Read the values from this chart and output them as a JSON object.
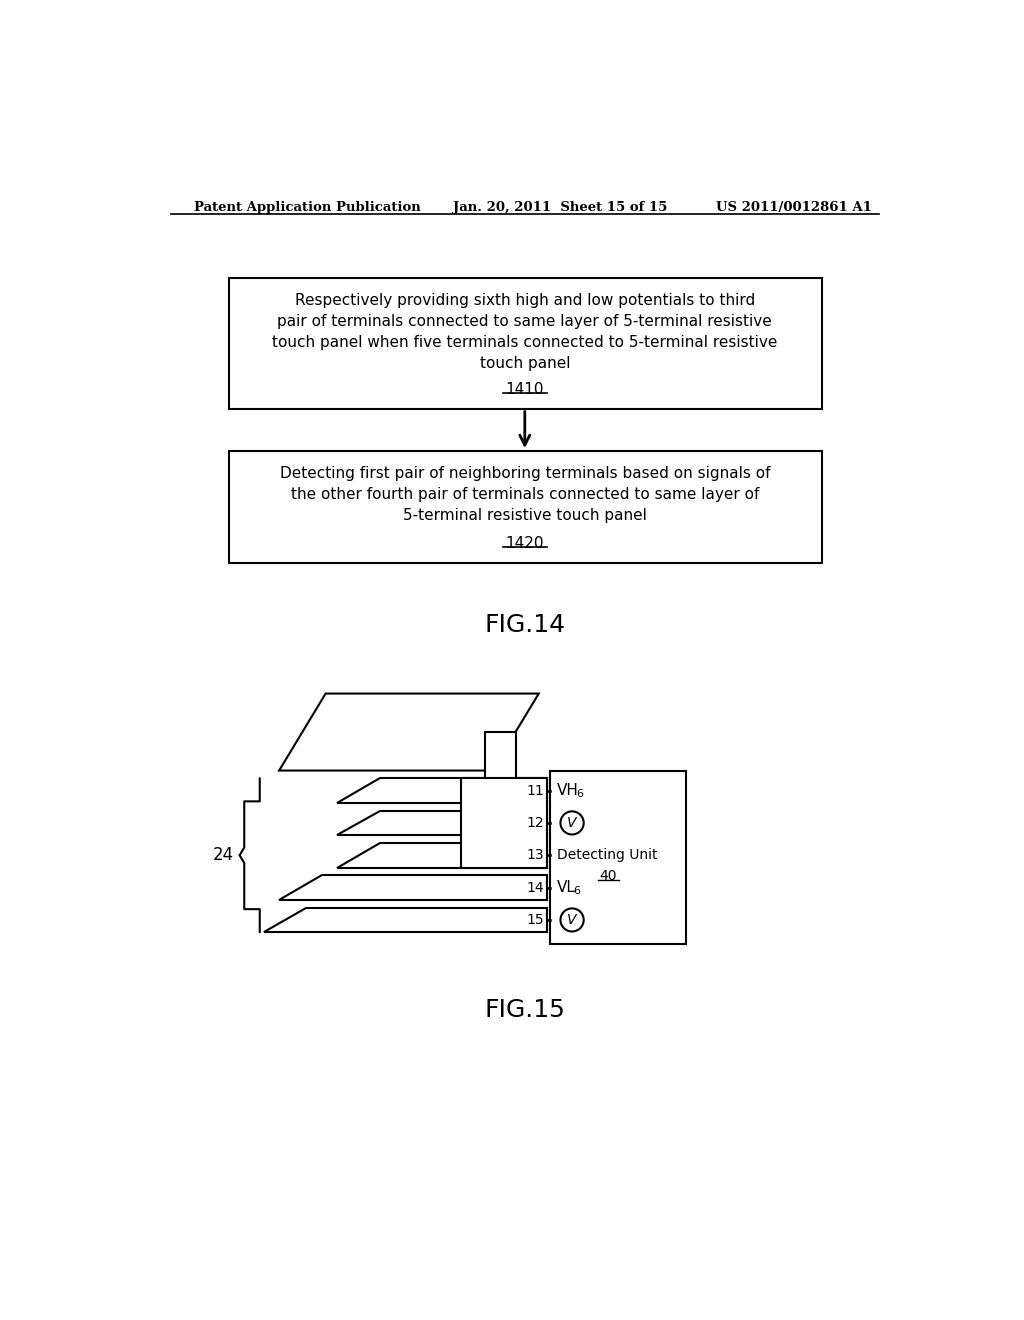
{
  "header_left": "Patent Application Publication",
  "header_mid": "Jan. 20, 2011  Sheet 15 of 15",
  "header_right": "US 2011/0012861 A1",
  "box1_text": "Respectively providing sixth high and low potentials to third\npair of terminals connected to same layer of 5-terminal resistive\ntouch panel when five terminals connected to 5-terminal resistive\ntouch panel",
  "box1_label": "1410",
  "box2_text": "Detecting first pair of neighboring terminals based on signals of\nthe other fourth pair of terminals connected to same layer of\n5-terminal resistive touch panel",
  "box2_label": "1420",
  "fig14_label": "FIG.14",
  "fig15_label": "FIG.15",
  "label_24": "24",
  "label_VH6": "VH",
  "label_VL6": "VL",
  "label_detect": "Detecting Unit",
  "label_40": "40",
  "bg_color": "#ffffff",
  "line_color": "#000000"
}
